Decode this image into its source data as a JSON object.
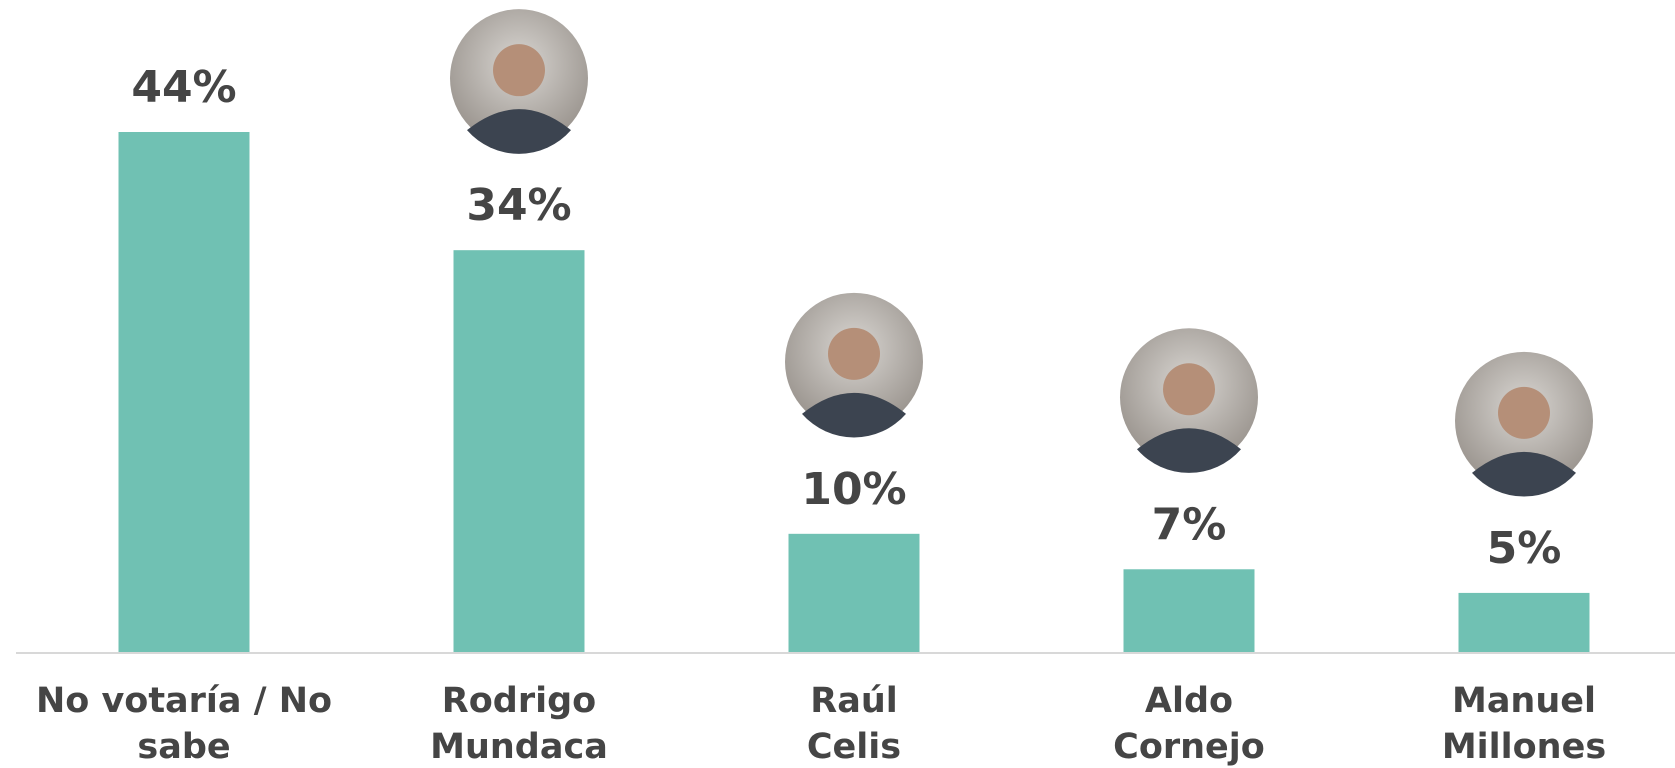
{
  "chart_data": {
    "type": "bar",
    "categories": [
      [
        "No votaría / No",
        "sabe"
      ],
      [
        "Rodrigo",
        "Mundaca"
      ],
      [
        "Raúl",
        "Celis"
      ],
      [
        "Aldo",
        "Cornejo"
      ],
      [
        "Manuel",
        "Millones"
      ]
    ],
    "values": [
      44,
      34,
      10,
      7,
      5
    ],
    "value_labels": [
      "44%",
      "34%",
      "10%",
      "7%",
      "5%"
    ],
    "color": "#70c1b3",
    "ylim": [
      0,
      55
    ]
  }
}
